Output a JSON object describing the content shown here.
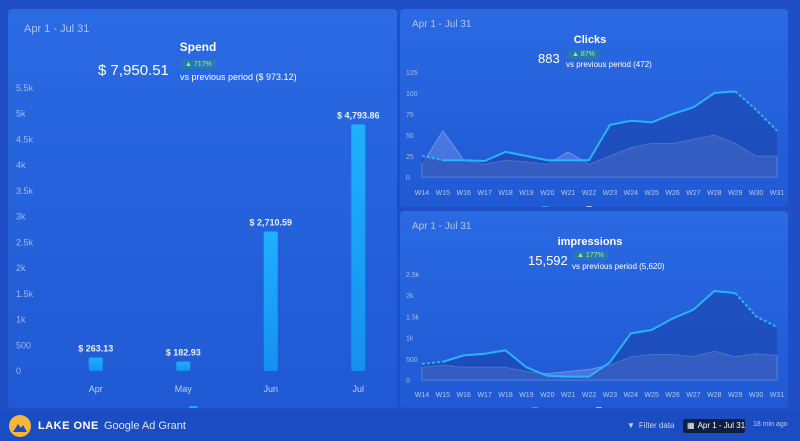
{
  "colors": {
    "bar": "#1aa7ff",
    "line": "#29b2ff",
    "area_prev": "#6f8fe0",
    "background": "#1e4fc6"
  },
  "spend": {
    "date_range": "Apr 1 - Jul 31",
    "title": "Spend",
    "value": "$ 7,950.51",
    "change": "▲ 717%",
    "comparison": "vs previous period ($ 973.12)"
  },
  "clicks": {
    "date_range": "Apr 1 - Jul 31",
    "title": "Clicks",
    "value": "883",
    "change": "▲ 87%",
    "comparison": "vs previous period (472)"
  },
  "impressions": {
    "date_range": "Apr 1 - Jul 31",
    "title": "impressions",
    "value": "15,592",
    "change": "▲ 177%",
    "comparison": "vs previous period (5,620)"
  },
  "footer": {
    "brand": "LAKE ONE",
    "report_name": "Google Ad Grant",
    "filter_label": "Filter data",
    "date_button": "Apr 1 - Jul 31",
    "updated": "18 min ago",
    "filter_icon": "filter-icon",
    "calendar_icon": "calendar-icon"
  },
  "chart_data": [
    {
      "type": "bar",
      "categories": [
        "Apr",
        "May",
        "Jun",
        "Jul"
      ],
      "values": [
        263.13,
        182.93,
        2710.59,
        4793.86
      ],
      "data_labels": [
        "$ 263.13",
        "$ 182.93",
        "$ 2,710.59",
        "$ 4,793.86"
      ],
      "yticks": [
        "0",
        "500",
        "1k",
        "1.5k",
        "2k",
        "2.5k",
        "3k",
        "3.5k",
        "4k",
        "4.5k",
        "5k",
        "5.5k"
      ],
      "ylim": [
        0,
        5500
      ],
      "grid": false
    },
    {
      "type": "area",
      "categories": [
        "W14",
        "W15",
        "W16",
        "W17",
        "W18",
        "W19",
        "W20",
        "W21",
        "W22",
        "W23",
        "W24",
        "W25",
        "W26",
        "W27",
        "W28",
        "W29",
        "W30",
        "W31"
      ],
      "yticks": [
        "0",
        "25",
        "50",
        "75",
        "100",
        "125"
      ],
      "ylim": [
        0,
        125
      ],
      "series": [
        {
          "values": [
            25,
            20,
            20,
            19,
            30,
            25,
            20,
            20,
            20,
            62,
            67,
            65,
            75,
            83,
            100,
            102,
            80,
            55
          ]
        },
        {
          "values": [
            15,
            55,
            20,
            15,
            20,
            18,
            15,
            30,
            15,
            25,
            35,
            40,
            40,
            45,
            50,
            40,
            25,
            25
          ]
        }
      ]
    },
    {
      "type": "area",
      "categories": [
        "W14",
        "W15",
        "W16",
        "W17",
        "W18",
        "W19",
        "W20",
        "W21",
        "W22",
        "W23",
        "W24",
        "W25",
        "W26",
        "W27",
        "W28",
        "W29",
        "W30",
        "W31"
      ],
      "yticks": [
        "0",
        "500",
        "1k",
        "1.5k",
        "2k",
        "2.5k"
      ],
      "ylim": [
        0,
        2500
      ],
      "series": [
        {
          "values": [
            380,
            430,
            580,
            620,
            700,
            300,
            100,
            80,
            80,
            420,
            1100,
            1180,
            1450,
            1660,
            2100,
            2050,
            1500,
            1250
          ]
        },
        {
          "values": [
            300,
            350,
            300,
            300,
            300,
            200,
            150,
            200,
            250,
            350,
            550,
            600,
            600,
            550,
            680,
            550,
            620,
            580
          ]
        }
      ]
    }
  ]
}
